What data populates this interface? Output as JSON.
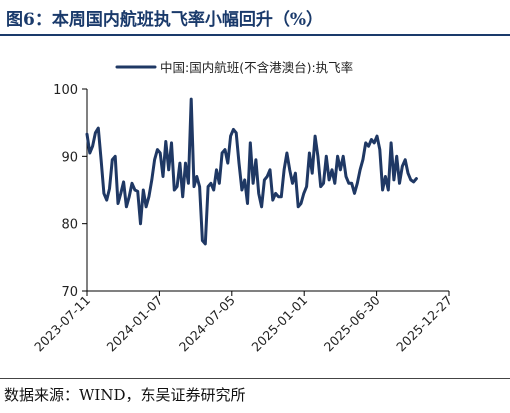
{
  "figure": {
    "title": "图6：本周国内航班执飞率小幅回升（%）",
    "source": "数据来源：WIND，东吴证券研究所"
  },
  "chart_data": {
    "type": "line",
    "ylim": [
      70,
      100
    ],
    "yticks": [
      70,
      80,
      90,
      100
    ],
    "xlim": [
      "2023-07-11",
      "2025-12-27"
    ],
    "xticks": [
      "2023-07-11",
      "2024-01-07",
      "2024-07-05",
      "2025-01-01",
      "2025-06-30",
      "2025-12-27"
    ],
    "legend_position": "top",
    "grid": false,
    "color": "#1f3864",
    "series": [
      {
        "name": "中国:国内航班(不含港澳台):执飞率",
        "points": [
          [
            "2023-07-11",
            93.3
          ],
          [
            "2023-07-18",
            90.5
          ],
          [
            "2023-07-25",
            91.5
          ],
          [
            "2023-08-01",
            93.5
          ],
          [
            "2023-08-08",
            94.2
          ],
          [
            "2023-08-15",
            89.5
          ],
          [
            "2023-08-22",
            84.5
          ],
          [
            "2023-08-29",
            83.5
          ],
          [
            "2023-09-05",
            85.2
          ],
          [
            "2023-09-12",
            89.5
          ],
          [
            "2023-09-19",
            90.0
          ],
          [
            "2023-09-26",
            83.0
          ],
          [
            "2023-10-03",
            84.5
          ],
          [
            "2023-10-10",
            86.2
          ],
          [
            "2023-10-17",
            82.5
          ],
          [
            "2023-10-24",
            84.0
          ],
          [
            "2023-10-31",
            86.0
          ],
          [
            "2023-11-07",
            85.0
          ],
          [
            "2023-11-14",
            84.8
          ],
          [
            "2023-11-21",
            80.0
          ],
          [
            "2023-11-28",
            85.0
          ],
          [
            "2023-12-05",
            82.5
          ],
          [
            "2023-12-12",
            84.0
          ],
          [
            "2023-12-19",
            86.5
          ],
          [
            "2023-12-26",
            89.5
          ],
          [
            "2024-01-02",
            91.0
          ],
          [
            "2024-01-09",
            90.5
          ],
          [
            "2024-01-16",
            87.0
          ],
          [
            "2024-01-23",
            92.2
          ],
          [
            "2024-01-30",
            88.0
          ],
          [
            "2024-02-06",
            92.0
          ],
          [
            "2024-02-13",
            85.0
          ],
          [
            "2024-02-20",
            85.5
          ],
          [
            "2024-02-27",
            89.0
          ],
          [
            "2024-03-05",
            84.0
          ],
          [
            "2024-03-12",
            89.0
          ],
          [
            "2024-03-19",
            86.0
          ],
          [
            "2024-03-26",
            98.5
          ],
          [
            "2024-04-02",
            85.5
          ],
          [
            "2024-04-09",
            87.0
          ],
          [
            "2024-04-16",
            85.5
          ],
          [
            "2024-04-23",
            77.5
          ],
          [
            "2024-04-30",
            77.0
          ],
          [
            "2024-05-07",
            85.5
          ],
          [
            "2024-05-14",
            86.0
          ],
          [
            "2024-05-21",
            85.0
          ],
          [
            "2024-05-28",
            88.0
          ],
          [
            "2024-06-04",
            86.0
          ],
          [
            "2024-06-11",
            90.5
          ],
          [
            "2024-06-18",
            91.0
          ],
          [
            "2024-06-25",
            89.0
          ],
          [
            "2024-07-02",
            93.0
          ],
          [
            "2024-07-09",
            94.0
          ],
          [
            "2024-07-16",
            93.5
          ],
          [
            "2024-07-23",
            89.0
          ],
          [
            "2024-07-30",
            85.0
          ],
          [
            "2024-08-06",
            86.5
          ],
          [
            "2024-08-13",
            83.0
          ],
          [
            "2024-08-20",
            92.0
          ],
          [
            "2024-08-27",
            86.0
          ],
          [
            "2024-09-03",
            89.5
          ],
          [
            "2024-09-10",
            84.5
          ],
          [
            "2024-09-17",
            82.5
          ],
          [
            "2024-09-24",
            86.5
          ],
          [
            "2024-10-01",
            87.0
          ],
          [
            "2024-10-08",
            88.0
          ],
          [
            "2024-10-15",
            83.5
          ],
          [
            "2024-10-22",
            84.5
          ],
          [
            "2024-10-29",
            84.0
          ],
          [
            "2024-11-05",
            84.0
          ],
          [
            "2024-11-12",
            88.0
          ],
          [
            "2024-11-19",
            90.5
          ],
          [
            "2024-11-26",
            88.0
          ],
          [
            "2024-12-03",
            86.0
          ],
          [
            "2024-12-10",
            87.5
          ],
          [
            "2024-12-17",
            82.5
          ],
          [
            "2024-12-24",
            83.0
          ],
          [
            "2024-12-31",
            84.5
          ],
          [
            "2025-01-07",
            85.5
          ],
          [
            "2025-01-14",
            90.5
          ],
          [
            "2025-01-21",
            87.5
          ],
          [
            "2025-01-28",
            93.0
          ],
          [
            "2025-02-04",
            90.0
          ],
          [
            "2025-02-11",
            85.5
          ],
          [
            "2025-02-18",
            86.0
          ],
          [
            "2025-02-25",
            90.0
          ],
          [
            "2025-03-04",
            86.5
          ],
          [
            "2025-03-11",
            88.0
          ],
          [
            "2025-03-18",
            86.0
          ],
          [
            "2025-03-25",
            90.0
          ],
          [
            "2025-04-01",
            88.0
          ],
          [
            "2025-04-08",
            90.0
          ],
          [
            "2025-04-15",
            87.0
          ],
          [
            "2025-04-22",
            86.0
          ],
          [
            "2025-04-29",
            86.0
          ],
          [
            "2025-05-06",
            84.5
          ],
          [
            "2025-05-13",
            86.0
          ],
          [
            "2025-05-20",
            88.0
          ],
          [
            "2025-05-27",
            89.5
          ],
          [
            "2025-06-03",
            92.0
          ],
          [
            "2025-06-10",
            91.5
          ],
          [
            "2025-06-17",
            92.5
          ],
          [
            "2025-06-24",
            92.0
          ],
          [
            "2025-07-01",
            93.0
          ],
          [
            "2025-07-08",
            91.0
          ],
          [
            "2025-07-15",
            85.0
          ],
          [
            "2025-07-22",
            87.0
          ],
          [
            "2025-07-29",
            85.0
          ],
          [
            "2025-08-05",
            92.0
          ],
          [
            "2025-08-12",
            86.5
          ],
          [
            "2025-08-19",
            90.0
          ],
          [
            "2025-08-26",
            86.0
          ],
          [
            "2025-09-02",
            88.5
          ],
          [
            "2025-09-09",
            89.5
          ],
          [
            "2025-09-16",
            87.5
          ],
          [
            "2025-09-23",
            86.5
          ],
          [
            "2025-09-30",
            86.2
          ],
          [
            "2025-10-07",
            86.7
          ]
        ]
      }
    ]
  }
}
